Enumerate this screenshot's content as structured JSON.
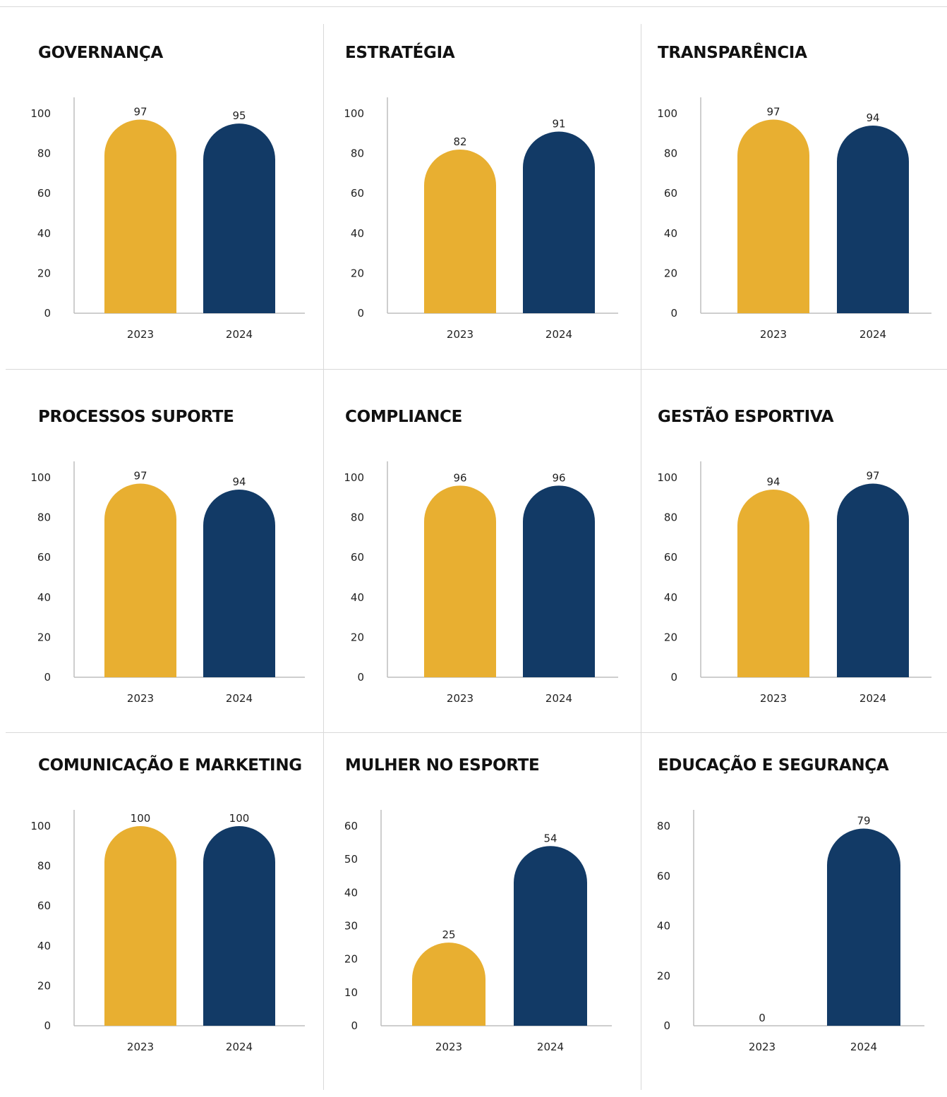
{
  "colors": {
    "year_2023": "#E8AF31",
    "year_2024": "#123A66",
    "axis": "#bdbdbd",
    "grid_rule": "#d9d9d9"
  },
  "chart_data": [
    {
      "type": "bar",
      "title": "GOVERNANÇA",
      "categories": [
        "2023",
        "2024"
      ],
      "values": [
        97,
        95
      ],
      "ylim": [
        0,
        100
      ],
      "yticks": [
        0,
        20,
        40,
        60,
        80,
        100
      ],
      "grid": false
    },
    {
      "type": "bar",
      "title": "ESTRATÉGIA",
      "categories": [
        "2023",
        "2024"
      ],
      "values": [
        82,
        91
      ],
      "ylim": [
        0,
        100
      ],
      "yticks": [
        0,
        20,
        40,
        60,
        80,
        100
      ],
      "grid": false
    },
    {
      "type": "bar",
      "title": "TRANSPARÊNCIA",
      "categories": [
        "2023",
        "2024"
      ],
      "values": [
        97,
        94
      ],
      "ylim": [
        0,
        100
      ],
      "yticks": [
        0,
        20,
        40,
        60,
        80,
        100
      ],
      "grid": false
    },
    {
      "type": "bar",
      "title": "PROCESSOS SUPORTE",
      "categories": [
        "2023",
        "2024"
      ],
      "values": [
        97,
        94
      ],
      "ylim": [
        0,
        100
      ],
      "yticks": [
        0,
        20,
        40,
        60,
        80,
        100
      ],
      "grid": false
    },
    {
      "type": "bar",
      "title": "COMPLIANCE",
      "categories": [
        "2023",
        "2024"
      ],
      "values": [
        96,
        96
      ],
      "ylim": [
        0,
        100
      ],
      "yticks": [
        0,
        20,
        40,
        60,
        80,
        100
      ],
      "grid": false
    },
    {
      "type": "bar",
      "title": "GESTÃO ESPORTIVA",
      "categories": [
        "2023",
        "2024"
      ],
      "values": [
        94,
        97
      ],
      "ylim": [
        0,
        100
      ],
      "yticks": [
        0,
        20,
        40,
        60,
        80,
        100
      ],
      "grid": false
    },
    {
      "type": "bar",
      "title": "COMUNICAÇÃO E MARKETING",
      "categories": [
        "2023",
        "2024"
      ],
      "values": [
        100,
        100
      ],
      "ylim": [
        0,
        100
      ],
      "yticks": [
        0,
        20,
        40,
        60,
        80,
        100
      ],
      "grid": false
    },
    {
      "type": "bar",
      "title": "MULHER NO ESPORTE",
      "categories": [
        "2023",
        "2024"
      ],
      "values": [
        25,
        54
      ],
      "ylim": [
        0,
        60
      ],
      "yticks": [
        0,
        10,
        20,
        30,
        40,
        50,
        60
      ],
      "grid": false
    },
    {
      "type": "bar",
      "title": "EDUCAÇÃO E SEGURANÇA",
      "categories": [
        "2023",
        "2024"
      ],
      "values": [
        0,
        79
      ],
      "ylim": [
        0,
        80
      ],
      "yticks": [
        0,
        20,
        40,
        60,
        80
      ],
      "grid": false
    }
  ]
}
